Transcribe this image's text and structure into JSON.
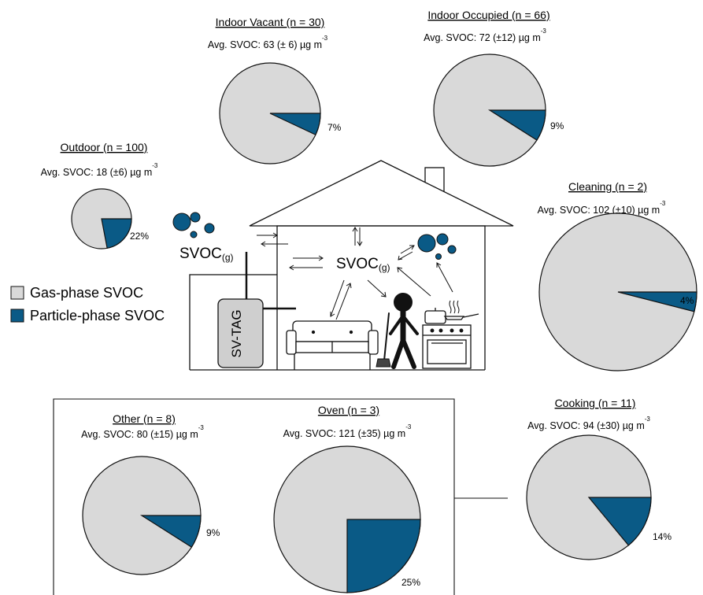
{
  "colors": {
    "gas": "#d9d9d9",
    "particle": "#0a5a86",
    "outline": "#111111",
    "stand_fill": "#cfcfcf"
  },
  "legend": {
    "gas_label": "Gas-phase SVOC",
    "particle_label": "Particle-phase SVOC"
  },
  "diagram": {
    "svoc_main": "SVOC",
    "svoc_sub": "(g)",
    "instrument_label": "SV-TAG"
  },
  "chart_data": [
    {
      "type": "pie",
      "id": "outdoor",
      "title": "Outdoor (n = 100)",
      "avg_text": "Avg. SVOC: 18 (±6) µg m",
      "unit_exponent": "-3",
      "particle_percent": 22,
      "label": "22%"
    },
    {
      "type": "pie",
      "id": "indoor-vacant",
      "title": "Indoor Vacant (n = 30)",
      "avg_text": "Avg. SVOC: 63 (± 6) µg m",
      "unit_exponent": "-3",
      "particle_percent": 7,
      "label": "7%"
    },
    {
      "type": "pie",
      "id": "indoor-occupied",
      "title": "Indoor Occupied (n = 66)",
      "avg_text": "Avg. SVOC: 72 (±12) µg m",
      "unit_exponent": "-3",
      "particle_percent": 9,
      "label": "9%"
    },
    {
      "type": "pie",
      "id": "cleaning",
      "title": "Cleaning (n = 2)",
      "avg_text": "Avg. SVOC: 102 (±10) µg m",
      "unit_exponent": "-3",
      "particle_percent": 4,
      "label": "4%"
    },
    {
      "type": "pie",
      "id": "cooking",
      "title": "Cooking (n = 11)",
      "avg_text": "Avg. SVOC: 94 (±30) µg m",
      "unit_exponent": "-3",
      "particle_percent": 14,
      "label": "14%"
    },
    {
      "type": "pie",
      "id": "other",
      "title": "Other (n = 8)",
      "avg_text": "Avg. SVOC: 80 (±15) µg m",
      "unit_exponent": "-3",
      "particle_percent": 9,
      "label": "9%"
    },
    {
      "type": "pie",
      "id": "oven",
      "title": "Oven (n = 3)",
      "avg_text": "Avg. SVOC: 121 (±35) µg m",
      "unit_exponent": "-3",
      "particle_percent": 25,
      "label": "25%"
    }
  ]
}
